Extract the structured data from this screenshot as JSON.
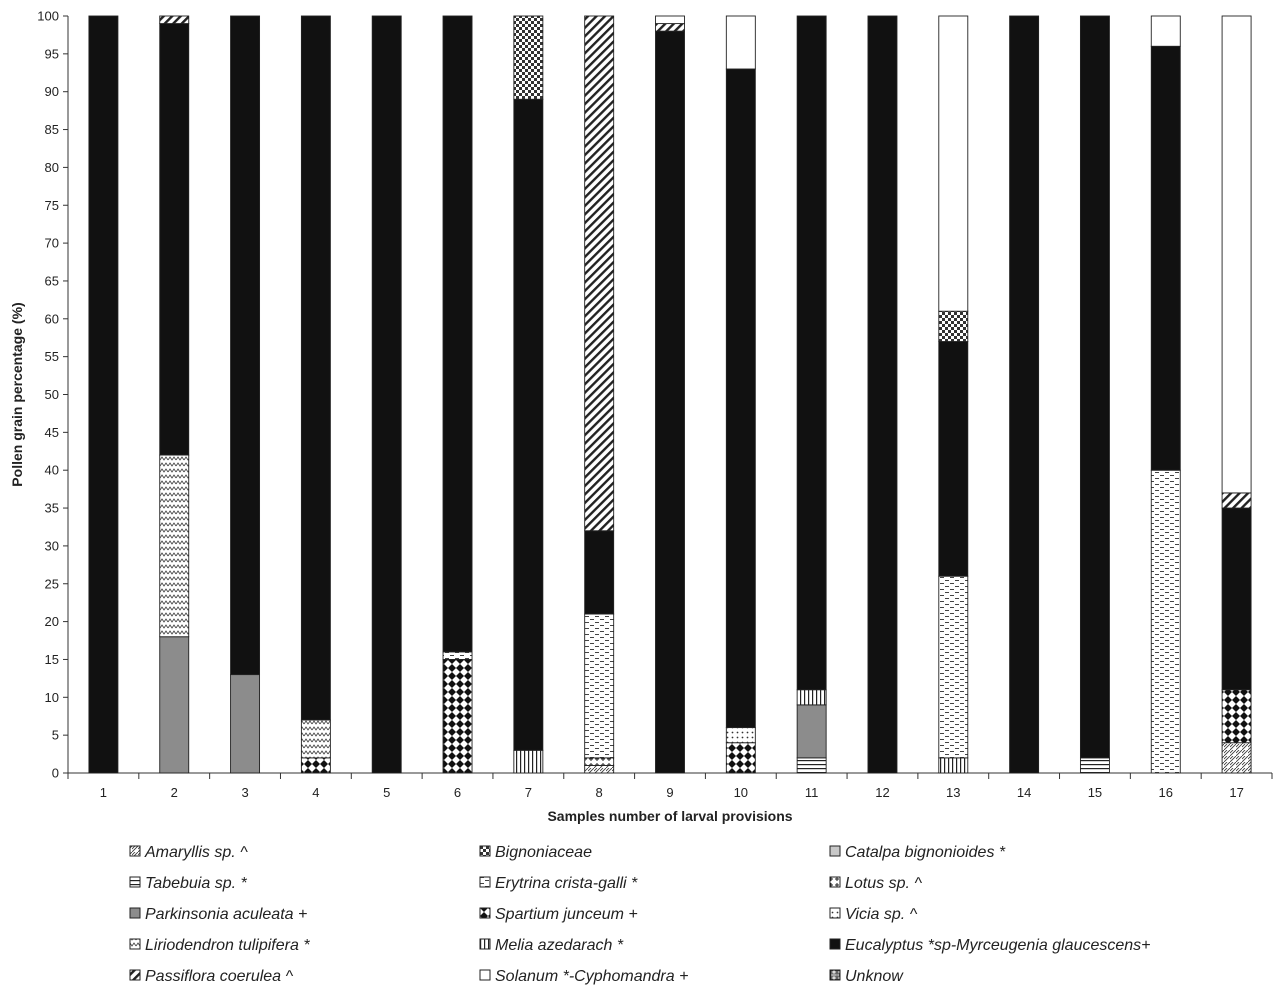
{
  "chart_data": {
    "type": "bar",
    "stacked": true,
    "xlabel": "Samples number of larval provisions",
    "ylabel": "Pollen grain percentage (%)",
    "ylim": [
      0,
      100
    ],
    "yticks": [
      0,
      5,
      10,
      15,
      20,
      25,
      30,
      35,
      40,
      45,
      50,
      55,
      60,
      65,
      70,
      75,
      80,
      85,
      90,
      95,
      100
    ],
    "categories": [
      "1",
      "2",
      "3",
      "4",
      "5",
      "6",
      "7",
      "8",
      "9",
      "10",
      "11",
      "12",
      "13",
      "14",
      "15",
      "16",
      "17"
    ],
    "series": [
      {
        "name": "Amaryllis sp. ^",
        "pattern": "amaryllis",
        "values": [
          0,
          0,
          0,
          0,
          0,
          0,
          0,
          1,
          0,
          0,
          0,
          0,
          0,
          0,
          0,
          0,
          4
        ]
      },
      {
        "name": "Tabebuia sp. *",
        "pattern": "hlines",
        "values": [
          0,
          0,
          0,
          0,
          0,
          0,
          0,
          0,
          0,
          0,
          2,
          0,
          0,
          0,
          2,
          0,
          0
        ]
      },
      {
        "name": "Parkinsonia aculeata +",
        "pattern": "gray",
        "values": [
          0,
          18,
          13,
          0,
          0,
          0,
          0,
          0,
          0,
          0,
          7,
          0,
          0,
          0,
          0,
          0,
          0
        ]
      },
      {
        "name": "Spartium junceum +",
        "pattern": "checker",
        "values": [
          0,
          0,
          0,
          2,
          0,
          15,
          0,
          0,
          0,
          4,
          0,
          0,
          0,
          0,
          0,
          0,
          7
        ]
      },
      {
        "name": "Vicia sp. ^",
        "pattern": "dots",
        "values": [
          0,
          0,
          0,
          0,
          0,
          0,
          0,
          0,
          0,
          2,
          0,
          0,
          0,
          0,
          0,
          0,
          0
        ]
      },
      {
        "name": "Lotus sp. ^",
        "pattern": "lotus",
        "values": [
          0,
          0,
          0,
          0,
          0,
          0,
          0,
          1,
          0,
          0,
          0,
          0,
          0,
          0,
          0,
          0,
          0
        ]
      },
      {
        "name": "Melia azedarach *",
        "pattern": "vlines",
        "values": [
          0,
          0,
          0,
          0,
          0,
          0,
          3,
          0,
          0,
          0,
          2,
          0,
          2,
          0,
          0,
          0,
          0
        ]
      },
      {
        "name": "Erytrina crista-galli *",
        "pattern": "dashes",
        "values": [
          0,
          0,
          0,
          0,
          0,
          1,
          0,
          19,
          0,
          0,
          0,
          0,
          24,
          0,
          0,
          40,
          0
        ]
      },
      {
        "name": "Liriodendron tulipifera *",
        "pattern": "zigzag",
        "values": [
          0,
          24,
          0,
          5,
          0,
          0,
          0,
          0,
          0,
          0,
          0,
          0,
          0,
          0,
          0,
          0,
          0
        ]
      },
      {
        "name": "Eucalyptus *sp-Myrceugenia glaucescens+",
        "pattern": "black",
        "values": [
          100,
          57,
          87,
          93,
          100,
          84,
          86,
          11,
          98,
          87,
          89,
          100,
          31,
          100,
          98,
          56,
          24
        ]
      },
      {
        "name": "Passiflora coerulea ^",
        "pattern": "diag",
        "values": [
          0,
          1,
          0,
          0,
          0,
          0,
          0,
          68,
          1,
          0,
          0,
          0,
          0,
          0,
          0,
          0,
          2
        ]
      },
      {
        "name": "Catalpa bignonioides *",
        "pattern": "lightgray",
        "values": [
          0,
          0,
          0,
          0,
          0,
          0,
          0,
          0,
          0,
          0,
          0,
          0,
          0,
          0,
          0,
          0,
          0
        ]
      },
      {
        "name": "Bignoniaceae",
        "pattern": "bigno",
        "values": [
          0,
          0,
          0,
          0,
          0,
          0,
          11,
          0,
          0,
          0,
          0,
          0,
          4,
          0,
          0,
          0,
          0
        ]
      },
      {
        "name": "Solanum *-Cyphomandra +",
        "pattern": "white",
        "values": [
          0,
          0,
          0,
          0,
          0,
          0,
          0,
          0,
          1,
          7,
          0,
          0,
          39,
          0,
          0,
          4,
          63
        ]
      },
      {
        "name": "Unknow",
        "pattern": "unknown",
        "values": [
          0,
          0,
          0,
          0,
          0,
          0,
          0,
          0,
          0,
          0,
          0,
          0,
          0,
          0,
          0,
          0,
          0
        ]
      }
    ],
    "legend": {
      "placement": "bottom",
      "columns": [
        [
          "Amaryllis sp. ^",
          "Tabebuia sp. *",
          "Parkinsonia aculeata +",
          "Liriodendron tulipifera *",
          "Passiflora coerulea ^"
        ],
        [
          "Bignoniaceae",
          "Erytrina crista-galli *",
          "Spartium junceum +",
          "Melia azedarach *",
          "Solanum *-Cyphomandra +"
        ],
        [
          "Catalpa bignonioides *",
          "Lotus sp. ^",
          "Vicia sp. ^",
          "Eucalyptus *sp-Myrceugenia glaucescens+",
          "Unknow"
        ]
      ]
    },
    "grid": false
  }
}
